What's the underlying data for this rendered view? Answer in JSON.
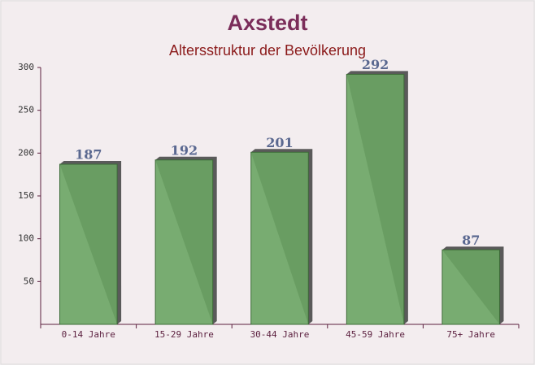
{
  "chart_data": {
    "type": "bar",
    "title": "Axstedt",
    "subtitle": "Altersstruktur der Bevölkerung",
    "categories": [
      "0-14 Jahre",
      "15-29 Jahre",
      "30-44 Jahre",
      "45-59 Jahre",
      "75+ Jahre"
    ],
    "values": [
      187,
      192,
      201,
      292,
      87
    ],
    "color": "#6aa463",
    "ylim": [
      0,
      300
    ],
    "yticks": [
      50,
      100,
      150,
      200,
      250,
      300
    ]
  }
}
